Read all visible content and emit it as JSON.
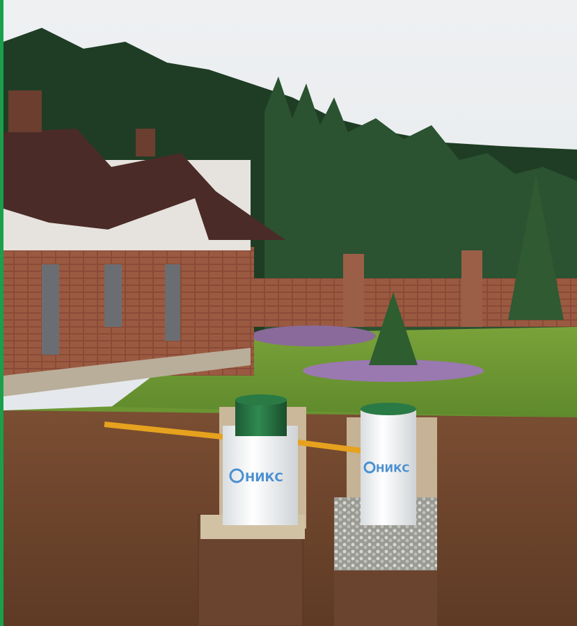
{
  "tanks": [
    {
      "label": "НИКС"
    },
    {
      "label": "НИКС"
    }
  ]
}
